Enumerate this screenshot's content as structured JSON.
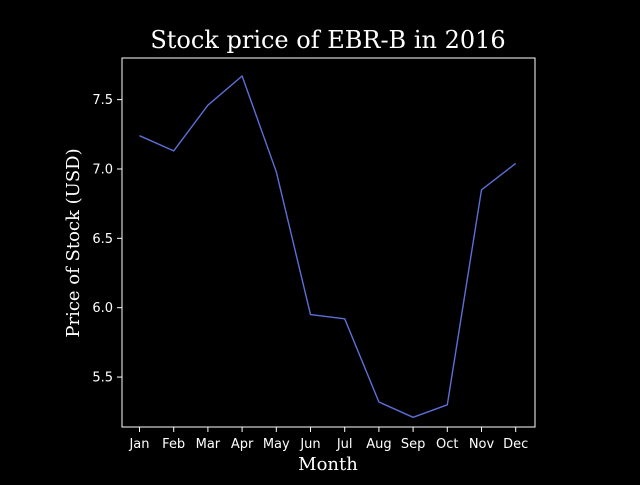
{
  "chart_data": {
    "type": "line",
    "title": "Stock price of EBR-B in 2016",
    "xlabel": "Month",
    "ylabel": "Price of Stock (USD)",
    "categories": [
      "Jan",
      "Feb",
      "Mar",
      "Apr",
      "May",
      "Jun",
      "Jul",
      "Aug",
      "Sep",
      "Oct",
      "Nov",
      "Dec"
    ],
    "series": [
      {
        "values": [
          7.24,
          7.13,
          7.46,
          7.67,
          6.98,
          5.95,
          5.92,
          5.32,
          5.21,
          5.3,
          6.85,
          7.04
        ]
      }
    ],
    "ylim": [
      5.14,
      7.8
    ],
    "yticks": [
      5.5,
      6.0,
      6.5,
      7.0,
      7.5
    ],
    "ytick_labels": [
      "5.5",
      "6.0",
      "6.5",
      "7.0",
      "7.5"
    ],
    "grid": false,
    "colors": {
      "background": "#000000",
      "axes": "#ffffff",
      "text": "#ffffff",
      "line": "#5b6fd6"
    }
  }
}
